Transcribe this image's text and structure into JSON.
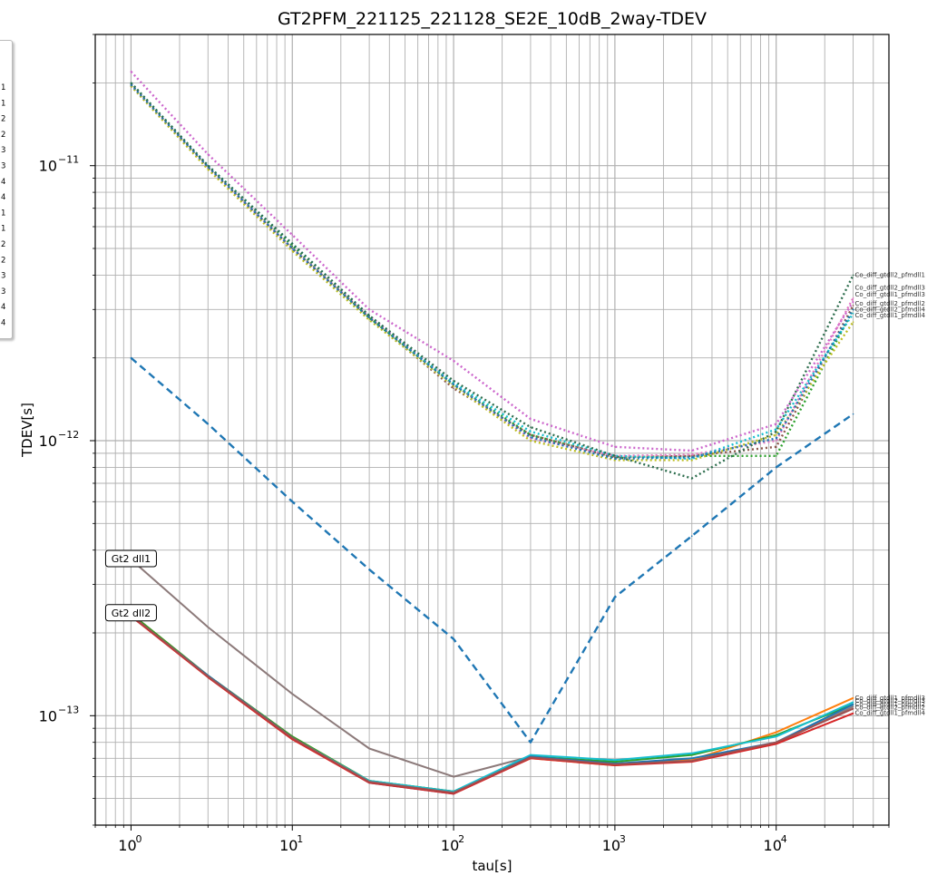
{
  "chart_data": {
    "type": "line",
    "title": "GT2PFM_221125_221128_SE2E_10dB_2way-TDEV",
    "xlabel": "tau[s]",
    "ylabel": "TDEV[s]",
    "xscale": "log",
    "yscale": "log",
    "xlim": [
      0.6,
      50000
    ],
    "ylim": [
      4e-14,
      3e-11
    ],
    "grid": true,
    "x_ticks": [
      {
        "value": 1,
        "base": "10",
        "exp": "0"
      },
      {
        "value": 10,
        "base": "10",
        "exp": "1"
      },
      {
        "value": 100,
        "base": "10",
        "exp": "2"
      },
      {
        "value": 1000,
        "base": "10",
        "exp": "3"
      },
      {
        "value": 10000,
        "base": "10",
        "exp": "4"
      }
    ],
    "y_ticks": [
      {
        "value": 1e-13,
        "base": "10",
        "exp": "−13"
      },
      {
        "value": 1e-12,
        "base": "10",
        "exp": "−12"
      },
      {
        "value": 1e-11,
        "base": "10",
        "exp": "−11"
      }
    ],
    "x": [
      1,
      3,
      10,
      30,
      100,
      300,
      1000,
      3000,
      10000,
      30000
    ],
    "series": [
      {
        "style": "dotted",
        "color": "#cc66cc",
        "values": [
          2.2e-11,
          1.1e-11,
          5.6e-12,
          3e-12,
          1.95e-12,
          1.2e-12,
          9.5e-13,
          9.2e-13,
          1.15e-12,
          3.2e-12
        ]
      },
      {
        "style": "dotted",
        "color": "#2ca02c",
        "values": [
          2e-11,
          1e-11,
          5.1e-12,
          2.8e-12,
          1.6e-12,
          1.05e-12,
          8.7e-13,
          8.8e-13,
          8.8e-13,
          3e-12
        ]
      },
      {
        "style": "dotted",
        "color": "#8c564b",
        "values": [
          1.95e-11,
          9.8e-12,
          5e-12,
          2.8e-12,
          1.55e-12,
          1.05e-12,
          8.7e-13,
          8.8e-13,
          9.5e-13,
          3.1e-12
        ]
      },
      {
        "style": "dotted",
        "color": "#e377c2",
        "values": [
          1.98e-11,
          9.9e-12,
          5e-12,
          2.85e-12,
          1.6e-12,
          1.02e-12,
          8.8e-13,
          8.9e-13,
          1e-12,
          3.3e-12
        ]
      },
      {
        "style": "dotted",
        "color": "#bcbd22",
        "values": [
          1.95e-11,
          9.7e-12,
          4.9e-12,
          2.75e-12,
          1.58e-12,
          1e-12,
          8.5e-13,
          8.5e-13,
          1.05e-12,
          2.7e-12
        ]
      },
      {
        "style": "dotted",
        "color": "#17becf",
        "values": [
          2e-11,
          1e-11,
          5.2e-12,
          2.85e-12,
          1.62e-12,
          1.08e-12,
          8.8e-13,
          8.6e-13,
          1.1e-12,
          2.9e-12
        ]
      },
      {
        "style": "dotted",
        "color": "#1f77b4",
        "values": [
          1.97e-11,
          9.9e-12,
          5e-12,
          2.8e-12,
          1.6e-12,
          1.03e-12,
          8.6e-13,
          8.7e-13,
          1.02e-12,
          3e-12
        ]
      },
      {
        "style": "dotted",
        "color": "#2e6e4e",
        "values": [
          2e-11,
          1e-11,
          5.2e-12,
          2.85e-12,
          1.65e-12,
          1.12e-12,
          8.8e-13,
          7.3e-13,
          1.08e-12,
          4e-12
        ]
      },
      {
        "style": "dashed",
        "color": "#1f77b4",
        "values": [
          2e-12,
          1.15e-12,
          6e-13,
          3.4e-13,
          1.9e-13,
          8e-14,
          2.7e-13,
          4.5e-13,
          8e-13,
          1.25e-12
        ]
      },
      {
        "style": "solid",
        "color": "#8c7a7a",
        "values": [
          3.7e-13,
          2.1e-13,
          1.2e-13,
          7.6e-14,
          6e-14,
          7.1e-14,
          6.7e-14,
          6.9e-14,
          7.9e-14,
          1.08e-13
        ]
      },
      {
        "style": "solid",
        "color": "#ff7f0e",
        "values": [
          2.35e-13,
          1.4e-13,
          8.4e-14,
          5.8e-14,
          5.3e-14,
          7e-14,
          6.6e-14,
          6.9e-14,
          8.7e-14,
          1.16e-13
        ]
      },
      {
        "style": "solid",
        "color": "#2ca02c",
        "values": [
          2.35e-13,
          1.4e-13,
          8.4e-14,
          5.8e-14,
          5.3e-14,
          7.1e-14,
          6.8e-14,
          7.2e-14,
          8.5e-14,
          1.1e-13
        ]
      },
      {
        "style": "solid",
        "color": "#17becf",
        "values": [
          2.3e-13,
          1.4e-13,
          8.3e-14,
          5.8e-14,
          5.3e-14,
          7.2e-14,
          6.9e-14,
          7.3e-14,
          8.4e-14,
          1.12e-13
        ]
      },
      {
        "style": "solid",
        "color": "#1f77b4",
        "values": [
          2.3e-13,
          1.4e-13,
          8.3e-14,
          5.7e-14,
          5.2e-14,
          7.1e-14,
          6.7e-14,
          7e-14,
          8e-14,
          1.1e-13
        ]
      },
      {
        "style": "solid",
        "color": "#d62728",
        "values": [
          2.3e-13,
          1.38e-13,
          8.2e-14,
          5.7e-14,
          5.2e-14,
          7e-14,
          6.6e-14,
          6.8e-14,
          7.9e-14,
          1.02e-13
        ]
      },
      {
        "style": "solid",
        "color": "#a05050",
        "values": [
          2.32e-13,
          1.39e-13,
          8.3e-14,
          5.75e-14,
          5.25e-14,
          7.05e-14,
          6.65e-14,
          6.85e-14,
          8e-14,
          1.06e-13
        ]
      }
    ],
    "callouts": [
      {
        "text": "Gt2 dll1",
        "value": 3.7e-13
      },
      {
        "text": "Gt2 dll2",
        "value": 2.35e-13
      }
    ],
    "end_labels": [
      {
        "text": "Co_diff_gtdll2_pfmdll1",
        "value": 4e-12
      },
      {
        "text": "Co_diff_gtdll2_pfmdll3",
        "value": 3.6e-12
      },
      {
        "text": "Co_diff_gtdll1_pfmdll3",
        "value": 3.4e-12
      },
      {
        "text": "Co_diff_gtdll2_pfmdll2",
        "value": 3.15e-12
      },
      {
        "text": "Co_diff_gtdll2_pfmdll4",
        "value": 3e-12
      },
      {
        "text": "Co_diff_gtdll1_pfmdll4",
        "value": 2.85e-12
      },
      {
        "text": "Co_diff_gtdll1_pfmdll3",
        "value": 1.16e-13
      },
      {
        "text": "Co_diff_gtdll2_pfmdll3",
        "value": 1.13e-13
      },
      {
        "text": "Co_diff_gtdll1_pfmdll2",
        "value": 1.1e-13
      },
      {
        "text": "Co_diff_gtdll2_pfmdll2",
        "value": 1.07e-13
      },
      {
        "text": "Co_diff_gtdll1_pfmdll4",
        "value": 1.02e-13
      }
    ],
    "legend_entries": [
      "1",
      "1",
      "2",
      "2",
      "3",
      "3",
      "4",
      "4",
      "1",
      "1",
      "2",
      "2",
      "3",
      "3",
      "4",
      "4"
    ]
  }
}
